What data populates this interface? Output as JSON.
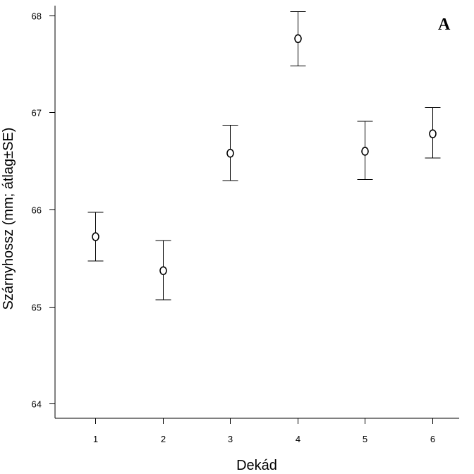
{
  "chart_data": {
    "type": "scatter",
    "panel_label": "A",
    "xlabel": "Dekád",
    "ylabel": "Szárnyhossz (mm; átlag±SE)",
    "x": [
      1,
      2,
      3,
      4,
      5,
      6
    ],
    "x_tick_labels": [
      "1",
      "2",
      "3",
      "4",
      "5",
      "6"
    ],
    "xlim": [
      0.4,
      6.4
    ],
    "y_ticks": [
      64,
      65,
      66,
      67,
      68
    ],
    "y_tick_labels": [
      "64",
      "65",
      "66",
      "67",
      "68"
    ],
    "ylim": [
      63.85,
      68.1
    ],
    "series": [
      {
        "marker": "open-circle",
        "values": [
          65.72,
          65.37,
          66.58,
          67.76,
          66.6,
          66.78
        ],
        "error_lower": [
          65.47,
          65.07,
          66.3,
          67.48,
          66.31,
          66.53
        ],
        "error_upper": [
          65.97,
          65.68,
          66.87,
          68.04,
          66.91,
          67.05
        ]
      }
    ],
    "grid": false,
    "legend": "none"
  }
}
